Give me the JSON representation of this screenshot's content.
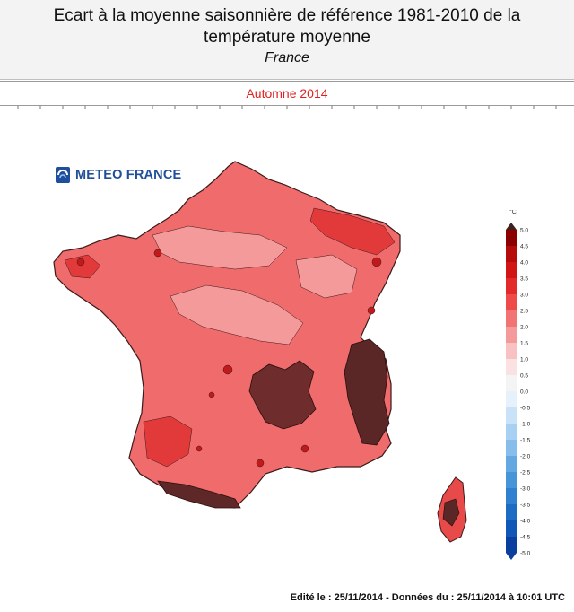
{
  "header": {
    "title_line1": "Ecart à la moyenne saisonnière de référence 1981-2010 de la",
    "title_line2": "température moyenne",
    "region": "France"
  },
  "season": "Automne 2014",
  "logo": {
    "text": "METEO FRANCE",
    "icon": "meteo-france-logo-icon"
  },
  "legend": {
    "unit": "°C",
    "ticks": [
      "5.0",
      "4.5",
      "4.0",
      "3.5",
      "3.0",
      "2.5",
      "2.0",
      "1.5",
      "1.0",
      "0.5",
      "0.0",
      "-0.5",
      "-1.0",
      "-1.5",
      "-2.0",
      "-2.5",
      "-3.0",
      "-3.5",
      "-4.0",
      "-4.5",
      "-5.0"
    ],
    "colors": {
      "above_4_5": "#3f1f1f",
      "4_0_to_4_5": "#8b0000",
      "3_5_to_4_0": "#b50b0b",
      "3_0_to_3_5": "#d11515",
      "2_5_to_3_0": "#e32a2a",
      "2_0_to_2_5": "#ee4a4a",
      "1_5_to_2_0": "#f27373",
      "1_0_to_1_5": "#f59a9a",
      "0_5_to_1_0": "#f8c2c2",
      "0_0_to_0_5": "#fbe2e2",
      "-0_5_to_0_0": "#e6f1fb",
      "-1_0_to_-0_5": "#c9e2f7",
      "-1_5_to_-1_0": "#a8d0f2",
      "-2_0_to_-1_5": "#86bdea",
      "-2_5_to_-2_0": "#64a8e2",
      "-3_0_to_-2_5": "#4794d8",
      "-3_5_to_-3_0": "#2f80cf",
      "-4_0_to_-3_5": "#1d6cc4",
      "-4_5_to_-4_0": "#1157b7",
      "below_-4_5": "#0a3f9e"
    }
  },
  "map": {
    "dominant_anomaly_range": "1.5 to 2.5",
    "hot_regions": [
      "Massif Central",
      "Alpes",
      "Pyrénées",
      "Corse"
    ]
  },
  "footer": "Edité le : 25/11/2014 - Données du : 25/11/2014 à 10:01 UTC"
}
